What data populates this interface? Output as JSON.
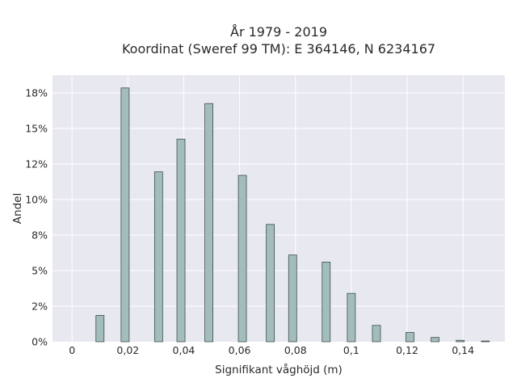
{
  "chart_data": {
    "type": "bar",
    "title": "År 1979 - 2019",
    "subtitle": "Koordinat (Sweref 99 TM): E 364146, N 6234167",
    "xlabel": "Signifikant våghöjd (m)",
    "ylabel": "Andel",
    "xlim": [
      -0.007,
      0.155
    ],
    "ylim": [
      0,
      0.1875
    ],
    "x_ticks": [
      0,
      0.02,
      0.04,
      0.06,
      0.08,
      0.1,
      0.12,
      0.14
    ],
    "x_tick_labels": [
      "0",
      "0,02",
      "0,04",
      "0,06",
      "0,08",
      "0,1",
      "0,12",
      "0,14"
    ],
    "y_ticks": [
      0,
      0.025,
      0.05,
      0.075,
      0.1,
      0.125,
      0.15,
      0.175
    ],
    "y_tick_labels": [
      "0%",
      "2%",
      "5%",
      "8%",
      "10%",
      "12%",
      "15%",
      "18%"
    ],
    "x": [
      0.01,
      0.019,
      0.031,
      0.039,
      0.049,
      0.061,
      0.071,
      0.079,
      0.091,
      0.1,
      0.109,
      0.121,
      0.13,
      0.139,
      0.148
    ],
    "values": [
      0.0185,
      0.1785,
      0.1195,
      0.1425,
      0.1675,
      0.117,
      0.0825,
      0.061,
      0.056,
      0.034,
      0.0115,
      0.0065,
      0.003,
      0.001,
      0.0005
    ],
    "bar_color": "#a3bcbc",
    "bar_edge_color": "#3d4f4c",
    "plot_background": "#e8e8f0",
    "grid": true,
    "legend": "none"
  }
}
